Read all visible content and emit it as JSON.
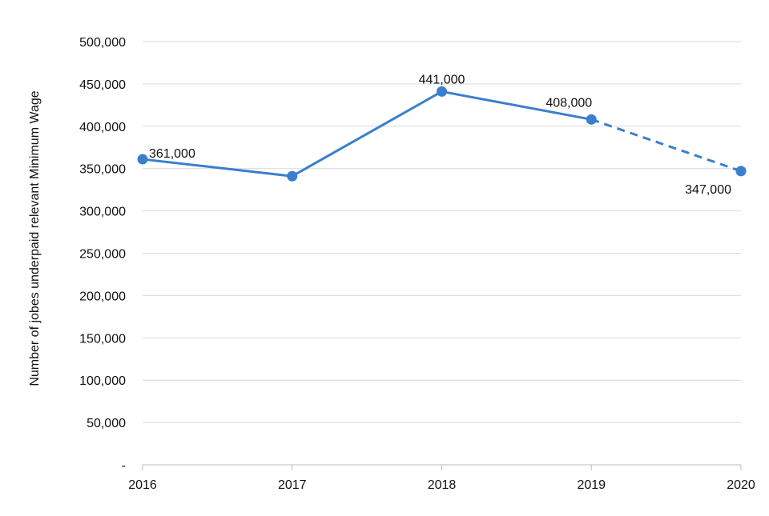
{
  "chart_data": {
    "type": "line",
    "title": "",
    "xlabel": "",
    "ylabel": "Number of jobes underpaid relevant Minimum Wage",
    "categories": [
      "2016",
      "2017",
      "2018",
      "2019",
      "2020"
    ],
    "series": [
      {
        "values": [
          361000,
          341000,
          441000,
          408000,
          347000
        ],
        "labels": [
          "361,000",
          null,
          "441,000",
          "408,000",
          "347,000"
        ],
        "solid_through_index": 3,
        "dashed_from_index": 3,
        "color": "#3a7fce"
      }
    ],
    "ylim": [
      0,
      500000
    ],
    "yticks": [
      0,
      50000,
      100000,
      150000,
      200000,
      250000,
      300000,
      350000,
      400000,
      450000,
      500000
    ],
    "ytick_labels": [
      "-",
      "50,000",
      "100,000",
      "150,000",
      "200,000",
      "250,000",
      "300,000",
      "350,000",
      "400,000",
      "450,000",
      "500,000"
    ],
    "grid": true,
    "legend": "none"
  }
}
